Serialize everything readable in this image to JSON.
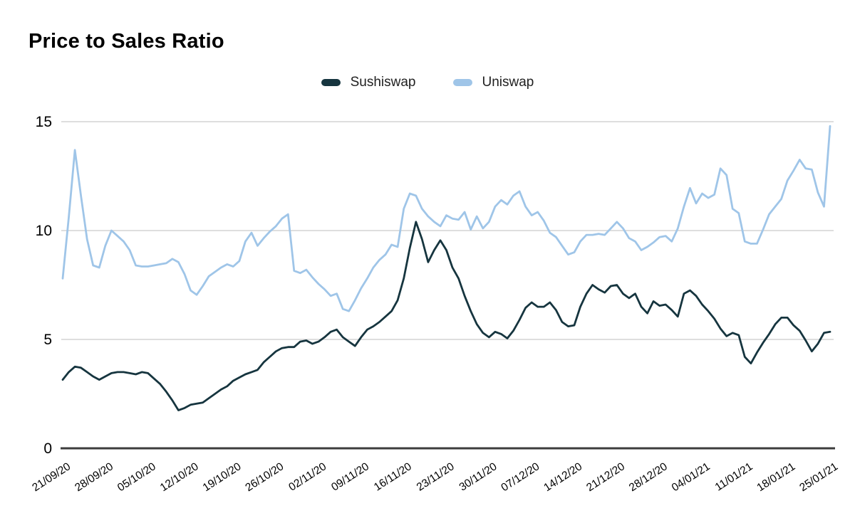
{
  "header": {
    "title": "Price to Sales Ratio"
  },
  "colors": {
    "sushiswap": "#16353f",
    "uniswap": "#9fc5e8",
    "gridline": "#d9d9d9",
    "axis_line": "#3c3c3c",
    "tick_text": "#000000",
    "legend_text": "#1f1f1f",
    "background": "#ffffff"
  },
  "chart_data": {
    "type": "line",
    "title": "Price to Sales Ratio",
    "legend_position": "top",
    "grid": true,
    "ylim": [
      0,
      15.5
    ],
    "y_ticks": [
      0,
      5,
      10,
      15
    ],
    "x_tick_every": 7,
    "x_tick_labels": [
      "21/09/20",
      "28/09/20",
      "05/10/20",
      "12/10/20",
      "19/10/20",
      "26/10/20",
      "02/11/20",
      "09/11/20",
      "16/11/20",
      "23/11/20",
      "30/11/20",
      "07/12/20",
      "14/12/20",
      "21/12/20",
      "28/12/20",
      "04/01/21",
      "11/01/21",
      "18/01/21",
      "25/01/21"
    ],
    "series": [
      {
        "name": "Sushiswap",
        "color": "#16353f",
        "values": [
          3.15,
          3.5,
          3.75,
          3.7,
          3.5,
          3.3,
          3.15,
          3.3,
          3.45,
          3.5,
          3.5,
          3.45,
          3.4,
          3.5,
          3.45,
          3.2,
          2.95,
          2.6,
          2.2,
          1.75,
          1.85,
          2.0,
          2.05,
          2.1,
          2.3,
          2.5,
          2.7,
          2.85,
          3.1,
          3.25,
          3.4,
          3.5,
          3.6,
          3.95,
          4.2,
          4.45,
          4.6,
          4.65,
          4.65,
          4.9,
          4.95,
          4.8,
          4.9,
          5.1,
          5.35,
          5.45,
          5.1,
          4.9,
          4.7,
          5.1,
          5.45,
          5.6,
          5.8,
          6.05,
          6.3,
          6.8,
          7.8,
          9.2,
          10.4,
          9.6,
          8.55,
          9.1,
          9.55,
          9.1,
          8.3,
          7.8,
          7.0,
          6.3,
          5.7,
          5.3,
          5.1,
          5.35,
          5.25,
          5.05,
          5.4,
          5.9,
          6.45,
          6.7,
          6.5,
          6.5,
          6.7,
          6.35,
          5.8,
          5.6,
          5.65,
          6.5,
          7.1,
          7.5,
          7.3,
          7.15,
          7.45,
          7.5,
          7.1,
          6.9,
          7.1,
          6.5,
          6.2,
          6.75,
          6.55,
          6.6,
          6.35,
          6.05,
          7.1,
          7.25,
          7.0,
          6.6,
          6.3,
          5.95,
          5.5,
          5.15,
          5.3,
          5.2,
          4.2,
          3.9,
          4.4,
          4.85,
          5.25,
          5.7,
          6.0,
          6.0,
          5.65,
          5.4,
          4.95,
          4.45,
          4.8,
          5.3,
          5.35
        ]
      },
      {
        "name": "Uniswap",
        "color": "#9fc5e8",
        "values": [
          7.8,
          10.6,
          13.7,
          11.6,
          9.6,
          8.4,
          8.3,
          9.3,
          10.0,
          9.75,
          9.5,
          9.1,
          8.4,
          8.35,
          8.35,
          8.4,
          8.45,
          8.5,
          8.7,
          8.55,
          8.0,
          7.25,
          7.05,
          7.45,
          7.9,
          8.1,
          8.3,
          8.45,
          8.35,
          8.6,
          9.5,
          9.9,
          9.3,
          9.65,
          9.95,
          10.2,
          10.55,
          10.75,
          8.15,
          8.05,
          8.2,
          7.85,
          7.55,
          7.3,
          7.0,
          7.1,
          6.4,
          6.3,
          6.8,
          7.35,
          7.8,
          8.3,
          8.65,
          8.9,
          9.35,
          9.25,
          11.0,
          11.7,
          11.6,
          11.0,
          10.65,
          10.4,
          10.2,
          10.7,
          10.55,
          10.5,
          10.85,
          10.05,
          10.65,
          10.1,
          10.4,
          11.1,
          11.4,
          11.2,
          11.6,
          11.8,
          11.1,
          10.7,
          10.85,
          10.45,
          9.9,
          9.7,
          9.3,
          8.9,
          9.0,
          9.5,
          9.8,
          9.8,
          9.85,
          9.8,
          10.1,
          10.4,
          10.1,
          9.65,
          9.5,
          9.1,
          9.25,
          9.45,
          9.7,
          9.75,
          9.5,
          10.1,
          11.1,
          11.95,
          11.25,
          11.7,
          11.5,
          11.65,
          12.85,
          12.55,
          11.0,
          10.8,
          9.5,
          9.4,
          9.4,
          10.05,
          10.75,
          11.1,
          11.45,
          12.3,
          12.75,
          13.25,
          12.85,
          12.8,
          11.75,
          11.1,
          14.8
        ]
      }
    ]
  }
}
